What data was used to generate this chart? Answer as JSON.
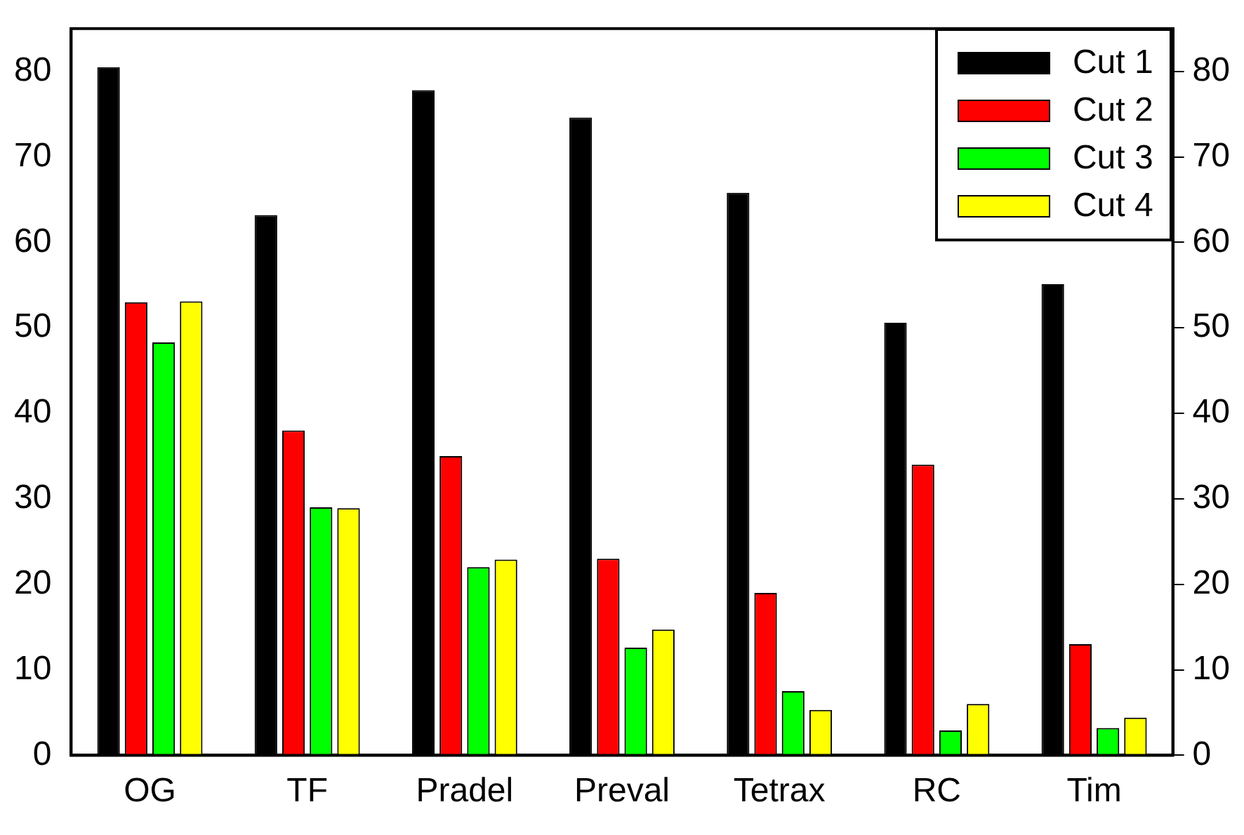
{
  "chart_data": {
    "type": "bar",
    "categories": [
      "OG",
      "TF",
      "Pradel",
      "Preval",
      "Tetrax",
      "RC",
      "Tim"
    ],
    "series": [
      {
        "name": "Cut 1",
        "color": "#000000",
        "values": [
          80.5,
          63.2,
          77.8,
          74.6,
          65.8,
          50.6,
          55.1
        ]
      },
      {
        "name": "Cut 2",
        "color": "#ff0000",
        "values": [
          53,
          38,
          35,
          23,
          19,
          34,
          13
        ]
      },
      {
        "name": "Cut 3",
        "color": "#00ff00",
        "values": [
          48.3,
          29,
          22,
          12.6,
          7.5,
          2.9,
          3.2
        ]
      },
      {
        "name": "Cut 4",
        "color": "#ffff00",
        "values": [
          53.1,
          28.9,
          22.9,
          14.7,
          5.3,
          6,
          4.4
        ]
      }
    ],
    "ylim": [
      0,
      85
    ],
    "yticks": [
      0,
      10,
      20,
      30,
      40,
      50,
      60,
      70,
      80
    ],
    "y2lim": [
      0,
      85
    ],
    "y2ticks": [
      0,
      10,
      20,
      30,
      40,
      50,
      60,
      70,
      80
    ],
    "grid": false,
    "legend": "top right"
  }
}
